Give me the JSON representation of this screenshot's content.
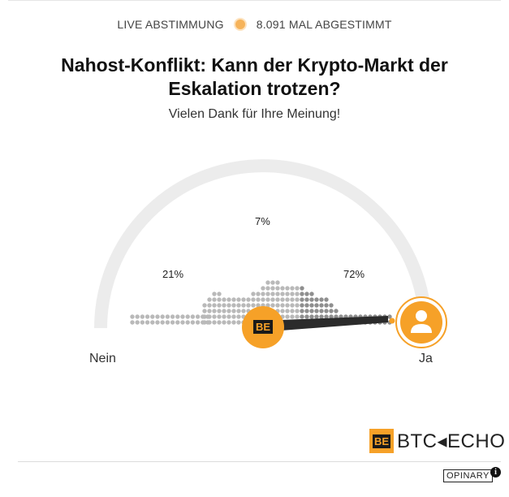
{
  "header": {
    "live_label": "LIVE ABSTIMMUNG",
    "votes_label": "8.091 MAL ABGESTIMMT"
  },
  "poll": {
    "title": "Nahost-Konflikt: Kann der Krypto-Markt der Eskalation trotzen?",
    "thanks": "Vielen Dank für Ihre Meinung!"
  },
  "gauge": {
    "left_label": "Nein",
    "right_label": "Ja",
    "percentages": [
      {
        "label": "21%"
      },
      {
        "label": "7%"
      },
      {
        "label": "72%"
      }
    ],
    "user_vote_fraction": 1.0,
    "average_fraction": 0.45,
    "colors": {
      "accent": "#f6a128",
      "track": "#ececec",
      "dots": "#9a9a9a",
      "needle": "#2b2b2b"
    }
  },
  "logos": {
    "avg_marker_text": "BE",
    "brand_mark": "BE",
    "brand_name": "BTC◂ECHO",
    "footer": "OPINARY",
    "info_icon": "i"
  }
}
